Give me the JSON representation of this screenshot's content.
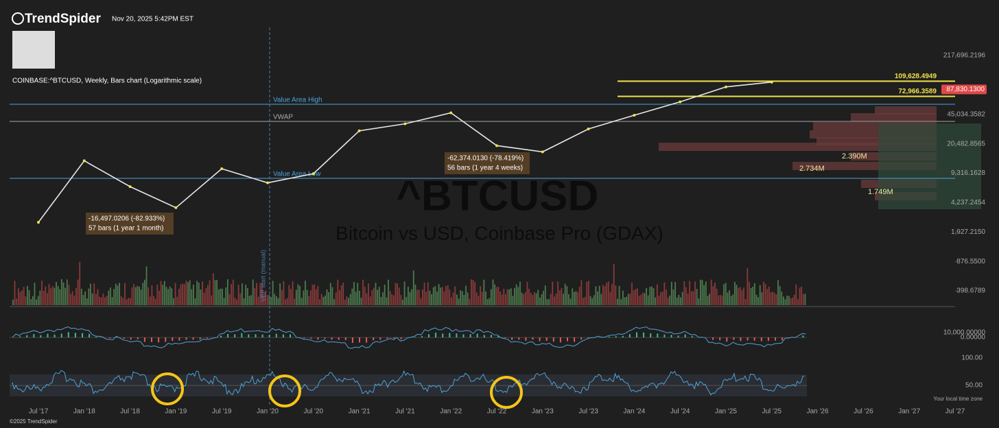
{
  "header": {
    "brand": "TrendSpider",
    "timestamp": "Nov 20, 2025 5:42PM EST",
    "symbol_line": "COINBASE:^BTCUSD, Weekly, Bars chart (Logarithmic scale)",
    "copyright": "©2025 TrendSpider"
  },
  "watermark": {
    "ticker": "^BTCUSD",
    "name": "Bitcoin vs USD, Coinbase Pro (GDAX)"
  },
  "chart_data": {
    "type": "line",
    "log_scale": true,
    "color": "#e8e8e8",
    "categories": [
      "Jul '17",
      "Jan '18",
      "Jul '18",
      "Jan '19",
      "Jul '19",
      "Jan '20",
      "Jul '20",
      "Jan '21",
      "Jul '21",
      "Jan '22",
      "Jul '22",
      "Jan '23",
      "Jul '23",
      "Jan '24",
      "Jul '24",
      "Jan '25",
      "Jul '25",
      "Jan '26",
      "Jul '26",
      "Jan '27",
      "Jul '27"
    ],
    "values": [
      2500,
      13000,
      6500,
      3700,
      10500,
      7200,
      9200,
      29000,
      35000,
      47000,
      19500,
      16500,
      30500,
      44000,
      63000,
      94000,
      107000,
      null,
      null,
      null,
      null
    ],
    "ylim": [
      271,
      462800
    ],
    "yticks": [
      {
        "value": 217696.2196,
        "label": "217,696.2196"
      },
      {
        "value": 45034.3582,
        "label": "45,034.3582"
      },
      {
        "value": 20482.8565,
        "label": "20,482.8565"
      },
      {
        "value": 9316.1628,
        "label": "9,316.1628"
      },
      {
        "value": 4237.2454,
        "label": "4,237.2454"
      },
      {
        "value": 1927.215,
        "label": "1,927.2150"
      },
      {
        "value": 876.55,
        "label": "876.5500"
      },
      {
        "value": 398.6789,
        "label": "398.6789"
      }
    ],
    "last_price": {
      "value": 87830.13,
      "label": "87,830.1300"
    },
    "levels": [
      {
        "value": 109628.4949,
        "label": "109,628.4949"
      },
      {
        "value": 72966.3589,
        "label": "72,966.3589"
      }
    ],
    "lines": [
      "Value Area High",
      "VWAP",
      "Value Area Low",
      "VBP start (manual)"
    ],
    "annotations": [
      {
        "change": "-16,497.0206 (-82.933%)",
        "duration": "57 bars (1 year 1 month)"
      },
      {
        "change": "-62,374.0130 (-78.419%)",
        "duration": "56 bars (1 year 4 weeks)"
      }
    ],
    "volume_profile_labels": [
      "2.390M",
      "2.734M",
      "1.749M"
    ],
    "macd_ticks": [
      "10,000.00000",
      "0.00000"
    ],
    "rsi_ticks": [
      "100.00",
      "50.00"
    ],
    "timezone_note": "Your local time zone"
  }
}
